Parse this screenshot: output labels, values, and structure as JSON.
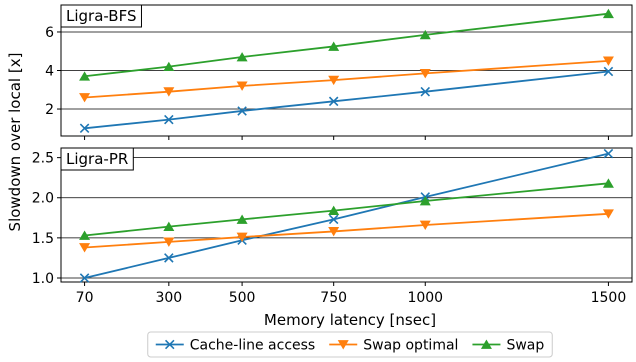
{
  "chart_data": [
    {
      "type": "line",
      "title": "Ligra-BFS",
      "x": [
        70,
        300,
        500,
        750,
        1000,
        1500
      ],
      "xticklabels": [
        "70",
        "300",
        "500",
        "750",
        "1000",
        "1500"
      ],
      "ylim": [
        0.6,
        7.4
      ],
      "yticks": [
        2,
        4,
        6
      ],
      "yticklabels": [
        "2",
        "4",
        "6"
      ],
      "grid": "y",
      "series": [
        {
          "name": "Cache-line access",
          "color": "#1f77b4",
          "marker": "x",
          "values": [
            1.0,
            1.45,
            1.9,
            2.4,
            2.9,
            3.95
          ]
        },
        {
          "name": "Swap optimal",
          "color": "#ff7f0e",
          "marker": "triangle-down",
          "values": [
            2.6,
            2.9,
            3.2,
            3.5,
            3.85,
            4.5
          ]
        },
        {
          "name": "Swap",
          "color": "#2ca02c",
          "marker": "triangle-up",
          "values": [
            3.7,
            4.2,
            4.7,
            5.25,
            5.85,
            6.95
          ]
        }
      ]
    },
    {
      "type": "line",
      "title": "Ligra-PR",
      "x": [
        70,
        300,
        500,
        750,
        1000,
        1500
      ],
      "xticklabels": [
        "70",
        "300",
        "500",
        "750",
        "1000",
        "1500"
      ],
      "ylim": [
        0.95,
        2.62
      ],
      "yticks": [
        1.0,
        1.5,
        2.0,
        2.5
      ],
      "yticklabels": [
        "1.0",
        "1.5",
        "2.0",
        "2.5"
      ],
      "grid": "y",
      "series": [
        {
          "name": "Cache-line access",
          "color": "#1f77b4",
          "marker": "x",
          "values": [
            1.0,
            1.25,
            1.47,
            1.73,
            2.01,
            2.55
          ]
        },
        {
          "name": "Swap optimal",
          "color": "#ff7f0e",
          "marker": "triangle-down",
          "values": [
            1.38,
            1.45,
            1.51,
            1.58,
            1.66,
            1.8
          ]
        },
        {
          "name": "Swap",
          "color": "#2ca02c",
          "marker": "triangle-up",
          "values": [
            1.53,
            1.64,
            1.73,
            1.84,
            1.96,
            2.18
          ]
        }
      ]
    }
  ],
  "xlabel": "Memory latency [nsec]",
  "ylabel": "Slowdown over local [x]",
  "legend": {
    "placement": "bottom-center",
    "entries": [
      {
        "label": "Cache-line access",
        "color": "#1f77b4",
        "marker": "x"
      },
      {
        "label": "Swap optimal",
        "color": "#ff7f0e",
        "marker": "triangle-down"
      },
      {
        "label": "Swap",
        "color": "#2ca02c",
        "marker": "triangle-up"
      }
    ]
  }
}
